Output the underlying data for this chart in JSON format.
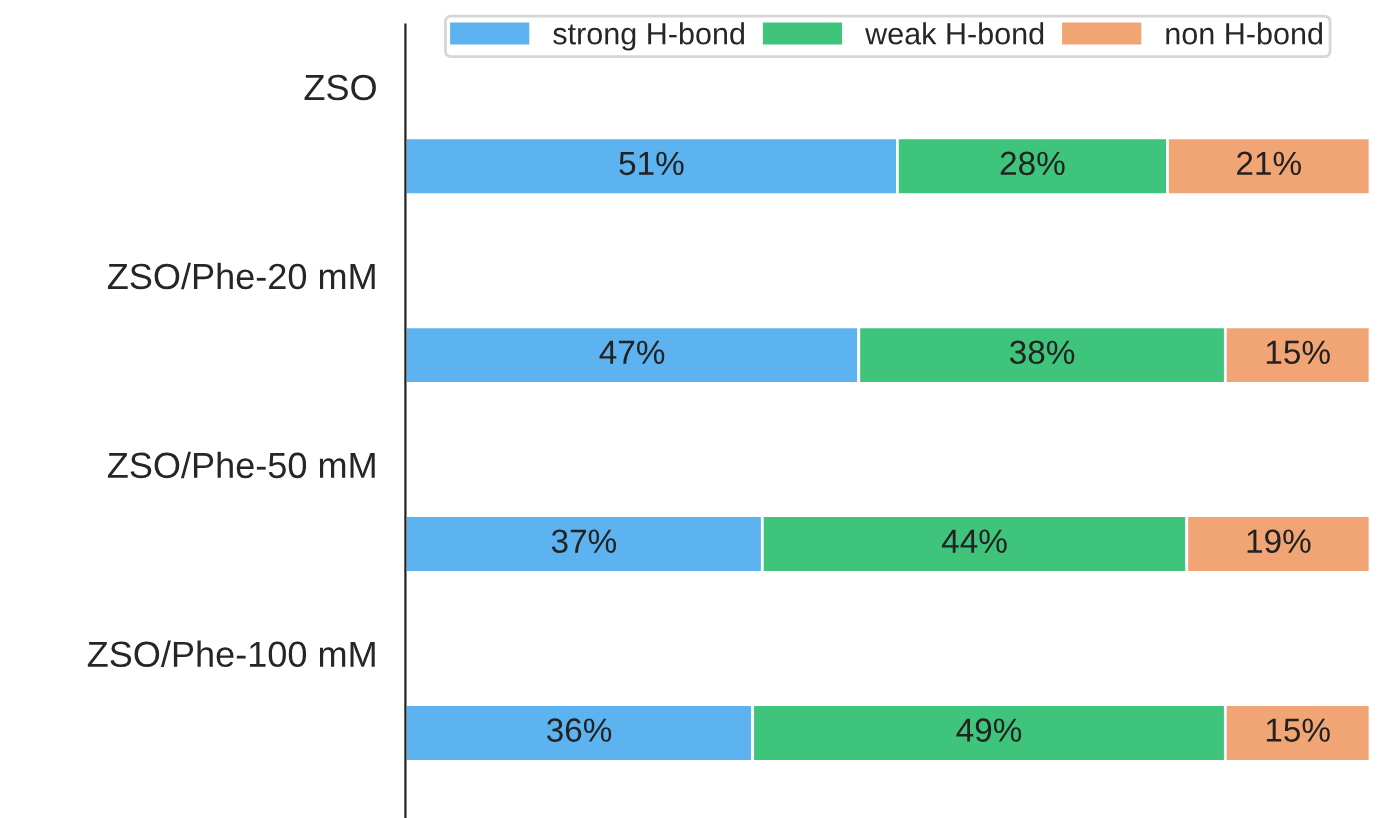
{
  "chart_data": {
    "type": "bar",
    "orientation": "horizontal",
    "stacked": true,
    "legend": "top",
    "categories": [
      "ZSO",
      "ZSO/Phe-20 mM",
      "ZSO/Phe-50 mM",
      "ZSO/Phe-100 mM"
    ],
    "series": [
      {
        "name": "strong H-bond",
        "color": "#5db3ef",
        "values": [
          51,
          47,
          37,
          36
        ],
        "value_labels": [
          "51%",
          "47%",
          "37%",
          "36%"
        ]
      },
      {
        "name": "weak H-bond",
        "color": "#3fc47c",
        "values": [
          28,
          38,
          44,
          49
        ],
        "value_labels": [
          "28%",
          "38%",
          "44%",
          "49%"
        ]
      },
      {
        "name": "non H-bond",
        "color": "#f2a574",
        "values": [
          21,
          15,
          19,
          15
        ],
        "value_labels": [
          "21%",
          "15%",
          "19%",
          "15%"
        ]
      }
    ]
  }
}
